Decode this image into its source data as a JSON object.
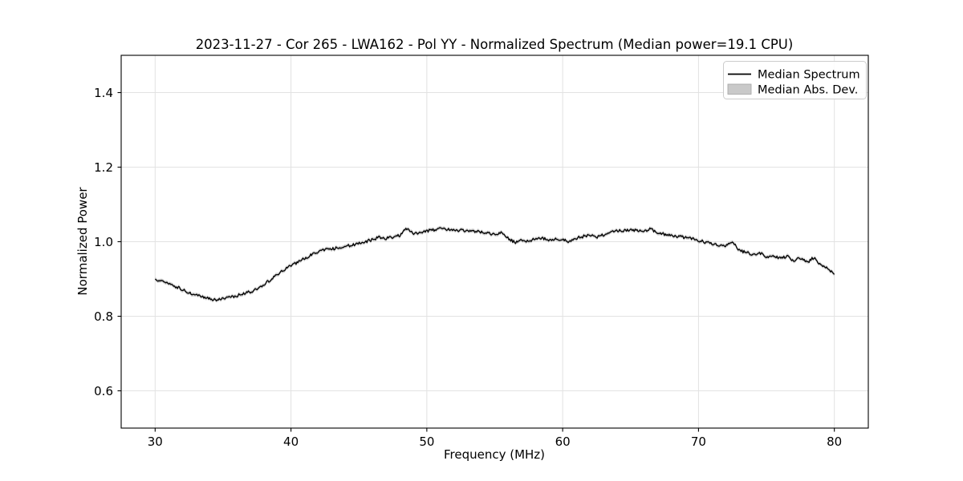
{
  "figure": {
    "background": "#ffffff",
    "frame_color": "#000000",
    "grid_color": "#e2e2e2"
  },
  "chart_data": {
    "type": "line",
    "title": "2023-11-27 - Cor 265 - LWA162 - Pol YY - Normalized Spectrum (Median power=19.1 CPU)",
    "xlabel": "Frequency (MHz)",
    "ylabel": "Normalized Power",
    "xlim": [
      27.5,
      82.5
    ],
    "ylim": [
      0.5,
      1.5
    ],
    "xticks": [
      30,
      40,
      50,
      60,
      70,
      80
    ],
    "xtick_labels": [
      "30",
      "40",
      "50",
      "60",
      "70",
      "80"
    ],
    "yticks": [
      0.6,
      0.8,
      1.0,
      1.2,
      1.4
    ],
    "ytick_labels": [
      "0.6",
      "0.8",
      "1.0",
      "1.2",
      "1.4"
    ],
    "grid": true,
    "legend": {
      "position": "upper right",
      "items": [
        {
          "label": "Median Spectrum",
          "type": "line",
          "color": "#000000"
        },
        {
          "label": "Median Abs. Dev.",
          "type": "patch",
          "color": "#c9c9c9",
          "edge_color": "#aaaaaa"
        }
      ]
    },
    "series": [
      {
        "name": "Median Spectrum",
        "color": "#000000",
        "linewidth": 1.3,
        "x": [
          30,
          30.5,
          31,
          31.5,
          32,
          32.5,
          33,
          33.5,
          34,
          34.5,
          35,
          35.5,
          36,
          36.5,
          37,
          37.5,
          38,
          38.5,
          39,
          39.5,
          40,
          40.5,
          41,
          41.5,
          42,
          42.5,
          43,
          43.5,
          44,
          44.5,
          45,
          45.5,
          46,
          46.5,
          47,
          47.5,
          48,
          48.5,
          49,
          49.5,
          50,
          50.5,
          51,
          51.5,
          52,
          52.5,
          53,
          53.5,
          54,
          54.5,
          55,
          55.5,
          56,
          56.5,
          57,
          57.5,
          58,
          58.5,
          59,
          59.5,
          60,
          60.5,
          61,
          61.5,
          62,
          62.5,
          63,
          63.5,
          64,
          64.5,
          65,
          65.5,
          66,
          66.5,
          67,
          67.5,
          68,
          68.5,
          69,
          69.5,
          70,
          70.5,
          71,
          71.5,
          72,
          72.5,
          73,
          73.5,
          74,
          74.5,
          75,
          75.5,
          76,
          76.5,
          77,
          77.5,
          78,
          78.5,
          79,
          79.5,
          80
        ],
        "y": [
          0.898,
          0.895,
          0.888,
          0.88,
          0.871,
          0.863,
          0.856,
          0.851,
          0.847,
          0.844,
          0.846,
          0.85,
          0.855,
          0.861,
          0.866,
          0.872,
          0.885,
          0.898,
          0.912,
          0.925,
          0.936,
          0.945,
          0.955,
          0.965,
          0.972,
          0.978,
          0.981,
          0.984,
          0.987,
          0.991,
          0.995,
          1.0,
          1.006,
          1.012,
          1.009,
          1.013,
          1.016,
          1.036,
          1.021,
          1.026,
          1.029,
          1.032,
          1.034,
          1.033,
          1.031,
          1.03,
          1.03,
          1.028,
          1.027,
          1.023,
          1.019,
          1.024,
          1.008,
          0.998,
          1.004,
          1.002,
          1.008,
          1.01,
          1.003,
          1.008,
          1.005,
          1.0,
          1.009,
          1.014,
          1.018,
          1.013,
          1.019,
          1.024,
          1.028,
          1.03,
          1.032,
          1.031,
          1.028,
          1.034,
          1.022,
          1.02,
          1.018,
          1.014,
          1.011,
          1.008,
          1.003,
          0.999,
          0.995,
          0.991,
          0.987,
          1.0,
          0.976,
          0.971,
          0.965,
          0.969,
          0.96,
          0.964,
          0.955,
          0.961,
          0.95,
          0.956,
          0.944,
          0.958,
          0.938,
          0.929,
          0.91
        ]
      },
      {
        "name": "Median Abs. Dev.",
        "band_halfwidth": 0.005,
        "color": "#c9c9c9"
      }
    ],
    "noise": {
      "amplitude": 0.004,
      "seed": 1337,
      "render_points": 700
    }
  }
}
